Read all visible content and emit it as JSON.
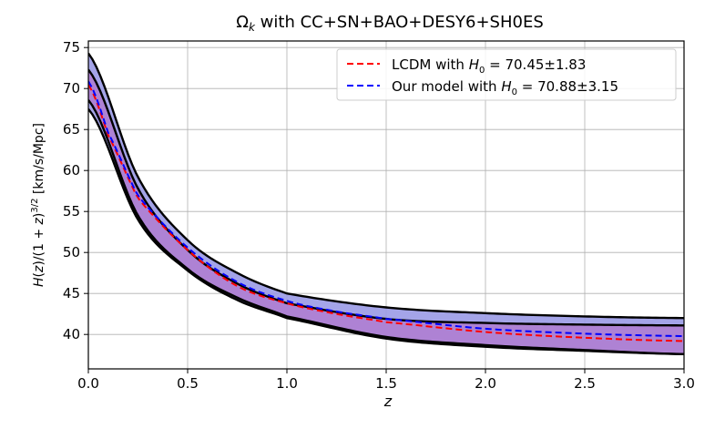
{
  "chart_data": {
    "type": "line",
    "title": "Ω_k with CC+SN+BAO+DESY6+SH0ES",
    "title_parts": {
      "omega": "Ω",
      "sub": "k",
      "rest": " with CC+SN+BAO+DESY6+SH0ES"
    },
    "xlabel": "z",
    "ylabel": "H(z)/(1+z)^{3/2} [km/s/Mpc]",
    "xlim": [
      0.0,
      3.0
    ],
    "ylim": [
      35.8,
      75.8
    ],
    "xticks": [
      0.0,
      0.5,
      1.0,
      1.5,
      2.0,
      2.5,
      3.0
    ],
    "yticks": [
      40,
      45,
      50,
      55,
      60,
      65,
      70,
      75
    ],
    "grid": true,
    "legend_position": "top-right",
    "bands": [
      {
        "fill": "#9a9ae6",
        "x": [
          0.0,
          0.25,
          0.5,
          0.75,
          1.0,
          1.5,
          2.0,
          2.5,
          3.0
        ],
        "upper": [
          74.3,
          59.2,
          51.5,
          47.5,
          45.0,
          43.3,
          42.6,
          42.2,
          42.0
        ],
        "lower": [
          67.5,
          54.0,
          47.8,
          44.2,
          42.0,
          39.5,
          38.5,
          38.0,
          37.6
        ]
      },
      {
        "fill": "#b07cd0",
        "x": [
          0.0,
          0.25,
          0.5,
          0.75,
          1.0,
          1.5,
          2.0,
          2.5,
          3.0
        ],
        "upper": [
          72.3,
          57.8,
          50.3,
          46.2,
          43.8,
          41.9,
          41.4,
          41.2,
          41.1
        ],
        "lower": [
          68.6,
          54.5,
          48.0,
          44.5,
          42.2,
          39.7,
          38.7,
          38.1,
          37.6
        ]
      }
    ],
    "series": [
      {
        "name": "LCDM with",
        "color": "#ff0000",
        "dash": true,
        "x": [
          0.0,
          0.1,
          0.25,
          0.5,
          0.75,
          1.0,
          1.25,
          1.5,
          2.0,
          2.5,
          3.0
        ],
        "values": [
          70.45,
          64.3,
          56.6,
          50.3,
          45.9,
          43.8,
          42.5,
          41.5,
          40.3,
          39.6,
          39.2
        ]
      },
      {
        "name": "Our model with",
        "color": "#0000ff",
        "dash": true,
        "x": [
          0.0,
          0.1,
          0.25,
          0.5,
          0.75,
          1.0,
          1.25,
          1.5,
          2.0,
          2.5,
          3.0
        ],
        "values": [
          70.88,
          64.6,
          56.9,
          50.6,
          46.4,
          44.1,
          42.8,
          41.9,
          40.7,
          40.1,
          39.8
        ]
      }
    ],
    "legend": [
      {
        "label": "LCDM with",
        "h0_symbol": "H",
        "h0_sub": "0",
        "h0_value": " = 70.45±1.83",
        "color": "#ff0000"
      },
      {
        "label": "Our model with",
        "h0_symbol": "H",
        "h0_sub": "0",
        "h0_value": " = 70.88±3.15",
        "color": "#0000ff"
      }
    ]
  }
}
